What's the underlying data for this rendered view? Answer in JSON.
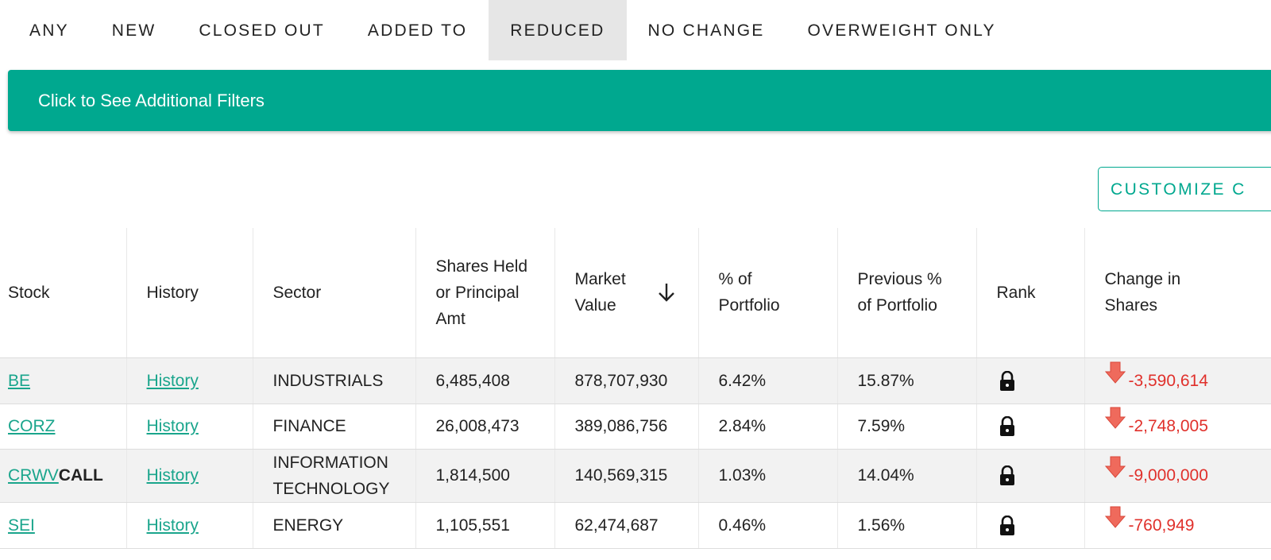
{
  "tabs": [
    "ANY",
    "NEW",
    "CLOSED OUT",
    "ADDED TO",
    "REDUCED",
    "NO CHANGE",
    "OVERWEIGHT ONLY"
  ],
  "active_tab": 4,
  "filters_banner": "Click to See Additional Filters",
  "customize_button": "CUSTOMIZE C",
  "table": {
    "headers": [
      "Stock",
      "History",
      "Sector",
      "Shares Held or Principal Amt",
      "Market Value",
      "% of Portfolio",
      "Previous % of Portfolio",
      "Rank",
      "Change in Shares"
    ],
    "rows": [
      {
        "stock": "BE",
        "history": "History",
        "sector": "INDUSTRIALS",
        "shares": "6,485,408",
        "market_value": "878,707,930",
        "pct": "6.42%",
        "prev_pct": "15.87%",
        "change": "-3,590,614"
      },
      {
        "stock": "CORZ",
        "history": "History",
        "sector": "FINANCE",
        "shares": "26,008,473",
        "market_value": "389,086,756",
        "pct": "2.84%",
        "prev_pct": "7.59%",
        "change": "-2,748,005"
      },
      {
        "stock": "CRWV",
        "stock_suffix": "CALL",
        "history": "History",
        "sector": "INFORMATION TECHNOLOGY",
        "shares": "1,814,500",
        "market_value": "140,569,315",
        "pct": "1.03%",
        "prev_pct": "14.04%",
        "change": "-9,000,000"
      },
      {
        "stock": "SEI",
        "history": "History",
        "sector": "ENERGY",
        "shares": "1,105,551",
        "market_value": "62,474,687",
        "pct": "0.46%",
        "prev_pct": "1.56%",
        "change": "-760,949"
      }
    ]
  }
}
